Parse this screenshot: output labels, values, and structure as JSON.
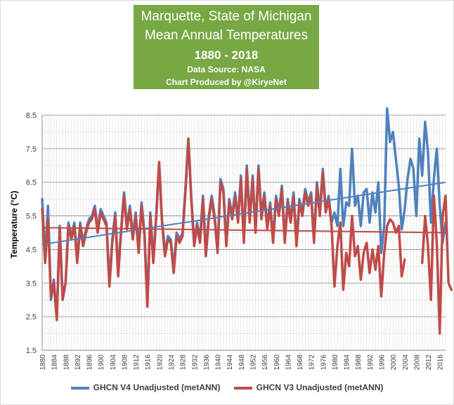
{
  "colors": {
    "title_bg": "#77a843",
    "v4": "#4e81bd",
    "v3": "#be4b48",
    "grid": "#bfbfbf"
  },
  "chart_data": {
    "type": "line",
    "title": [
      "Marquette, State of Michigan",
      "Mean Annual Temperatures",
      "1880 - 2018"
    ],
    "subtitle": [
      "Data Source: NASA",
      "Chart Produced by @KiryeNet"
    ],
    "xlabel": "",
    "ylabel": "Temperature (°C)",
    "ylim": [
      1.5,
      8.5
    ],
    "yticks": [
      "1.5",
      "2.5",
      "3.5",
      "4.5",
      "5.5",
      "6.5",
      "7.5",
      "8.5"
    ],
    "xlim": [
      1880,
      2018
    ],
    "xticks": [
      "1880",
      "1884",
      "1888",
      "1892",
      "1896",
      "1900",
      "1904",
      "1908",
      "1912",
      "1916",
      "1920",
      "1924",
      "1928",
      "1932",
      "1936",
      "1940",
      "1944",
      "1948",
      "1952",
      "1956",
      "1960",
      "1964",
      "1968",
      "1972",
      "1976",
      "1980",
      "1984",
      "1988",
      "1992",
      "1996",
      "2000",
      "2004",
      "2008",
      "2012",
      "2016"
    ],
    "grid": true,
    "legend_position": "bottom",
    "series": [
      {
        "name": "GHCN V4 Unadjusted (metANN)",
        "x_start": 1880,
        "values": [
          6.0,
          4.2,
          5.8,
          3.0,
          3.6,
          2.5,
          5.2,
          3.1,
          3.5,
          5.3,
          4.9,
          5.3,
          4.2,
          5.3,
          4.7,
          5.1,
          5.4,
          5.5,
          5.8,
          5.1,
          5.7,
          5.5,
          5.3,
          3.5,
          4.8,
          5.6,
          3.8,
          5.1,
          6.2,
          5.2,
          5.8,
          4.9,
          5.6,
          4.5,
          5.9,
          5.0,
          2.9,
          5.6,
          4.2,
          5.5,
          7.1,
          5.4,
          4.4,
          4.9,
          4.8,
          3.9,
          5.0,
          4.8,
          5.0,
          6.3,
          7.8,
          6.1,
          4.7,
          5.3,
          4.8,
          6.1,
          4.4,
          5.5,
          6.1,
          5.5,
          4.5,
          6.6,
          6.3,
          4.7,
          6.0,
          5.5,
          6.2,
          5.4,
          6.7,
          4.8,
          7.0,
          5.4,
          6.7,
          5.1,
          7.0,
          5.5,
          6.2,
          5.2,
          5.9,
          4.8,
          6.1,
          5.6,
          6.4,
          4.8,
          6.0,
          5.4,
          6.2,
          4.7,
          6.0,
          5.6,
          6.3,
          5.9,
          6.2,
          4.8,
          6.5,
          5.6,
          6.9,
          5.7,
          6.1,
          5.3,
          5.6,
          5.2,
          6.9,
          5.2,
          5.9,
          5.8,
          7.5,
          5.8,
          6.1,
          5.2,
          6.2,
          6.3,
          5.3,
          6.2,
          5.6,
          6.5,
          4.4,
          5.2,
          8.7,
          7.7,
          8.0,
          7.2,
          6.4,
          5.1,
          5.7,
          6.6,
          7.2,
          6.9,
          5.5,
          7.8,
          6.7,
          8.3,
          7.4,
          5.3,
          6.6,
          7.5,
          5.8,
          4.7,
          5.3
        ]
      },
      {
        "name": "GHCN V3 Unadjusted (metANN)",
        "x_start": 1880,
        "values": [
          5.7,
          4.1,
          5.4,
          3.1,
          3.5,
          2.4,
          5.1,
          3.0,
          3.5,
          5.2,
          4.8,
          5.2,
          4.1,
          5.2,
          4.6,
          5.0,
          5.3,
          5.4,
          5.7,
          5.0,
          5.6,
          5.4,
          5.2,
          3.4,
          4.7,
          5.5,
          3.7,
          5.0,
          6.1,
          5.1,
          5.7,
          4.8,
          5.5,
          4.4,
          5.8,
          4.9,
          2.8,
          5.5,
          4.1,
          5.4,
          7.1,
          5.3,
          4.3,
          4.8,
          4.7,
          3.8,
          4.9,
          4.7,
          4.9,
          6.2,
          7.8,
          6.0,
          4.6,
          5.2,
          4.7,
          6.0,
          4.3,
          5.4,
          6.0,
          5.4,
          4.4,
          6.5,
          6.2,
          4.6,
          5.9,
          5.4,
          6.1,
          5.3,
          6.6,
          4.7,
          6.9,
          5.3,
          6.6,
          5.0,
          6.9,
          5.4,
          6.1,
          5.1,
          5.8,
          4.7,
          6.0,
          5.5,
          6.3,
          4.7,
          5.9,
          5.3,
          6.1,
          4.6,
          5.9,
          5.5,
          6.2,
          5.8,
          6.1,
          4.7,
          6.4,
          5.5,
          6.8,
          5.6,
          6.0,
          5.2,
          3.4,
          4.6,
          5.3,
          3.3,
          4.4,
          4.0,
          5.5,
          4.3,
          4.6,
          3.6,
          4.4,
          4.7,
          3.8,
          4.5,
          3.9,
          4.6,
          3.1,
          4.4,
          5.2,
          5.4,
          5.3,
          5.0,
          5.2,
          3.7,
          4.2,
          null,
          null,
          null,
          null,
          null,
          4.1,
          5.5,
          4.6,
          3.0,
          6.1,
          4.7,
          2.0,
          5.5,
          6.1,
          3.5,
          3.3
        ]
      }
    ],
    "trendlines": [
      {
        "series": "GHCN V4 Unadjusted (metANN)",
        "start": [
          1880,
          4.65
        ],
        "end": [
          2018,
          6.5
        ]
      },
      {
        "series": "GHCN V3 Unadjusted (metANN)",
        "start": [
          1880,
          5.15
        ],
        "end": [
          2018,
          5.0
        ]
      }
    ]
  }
}
